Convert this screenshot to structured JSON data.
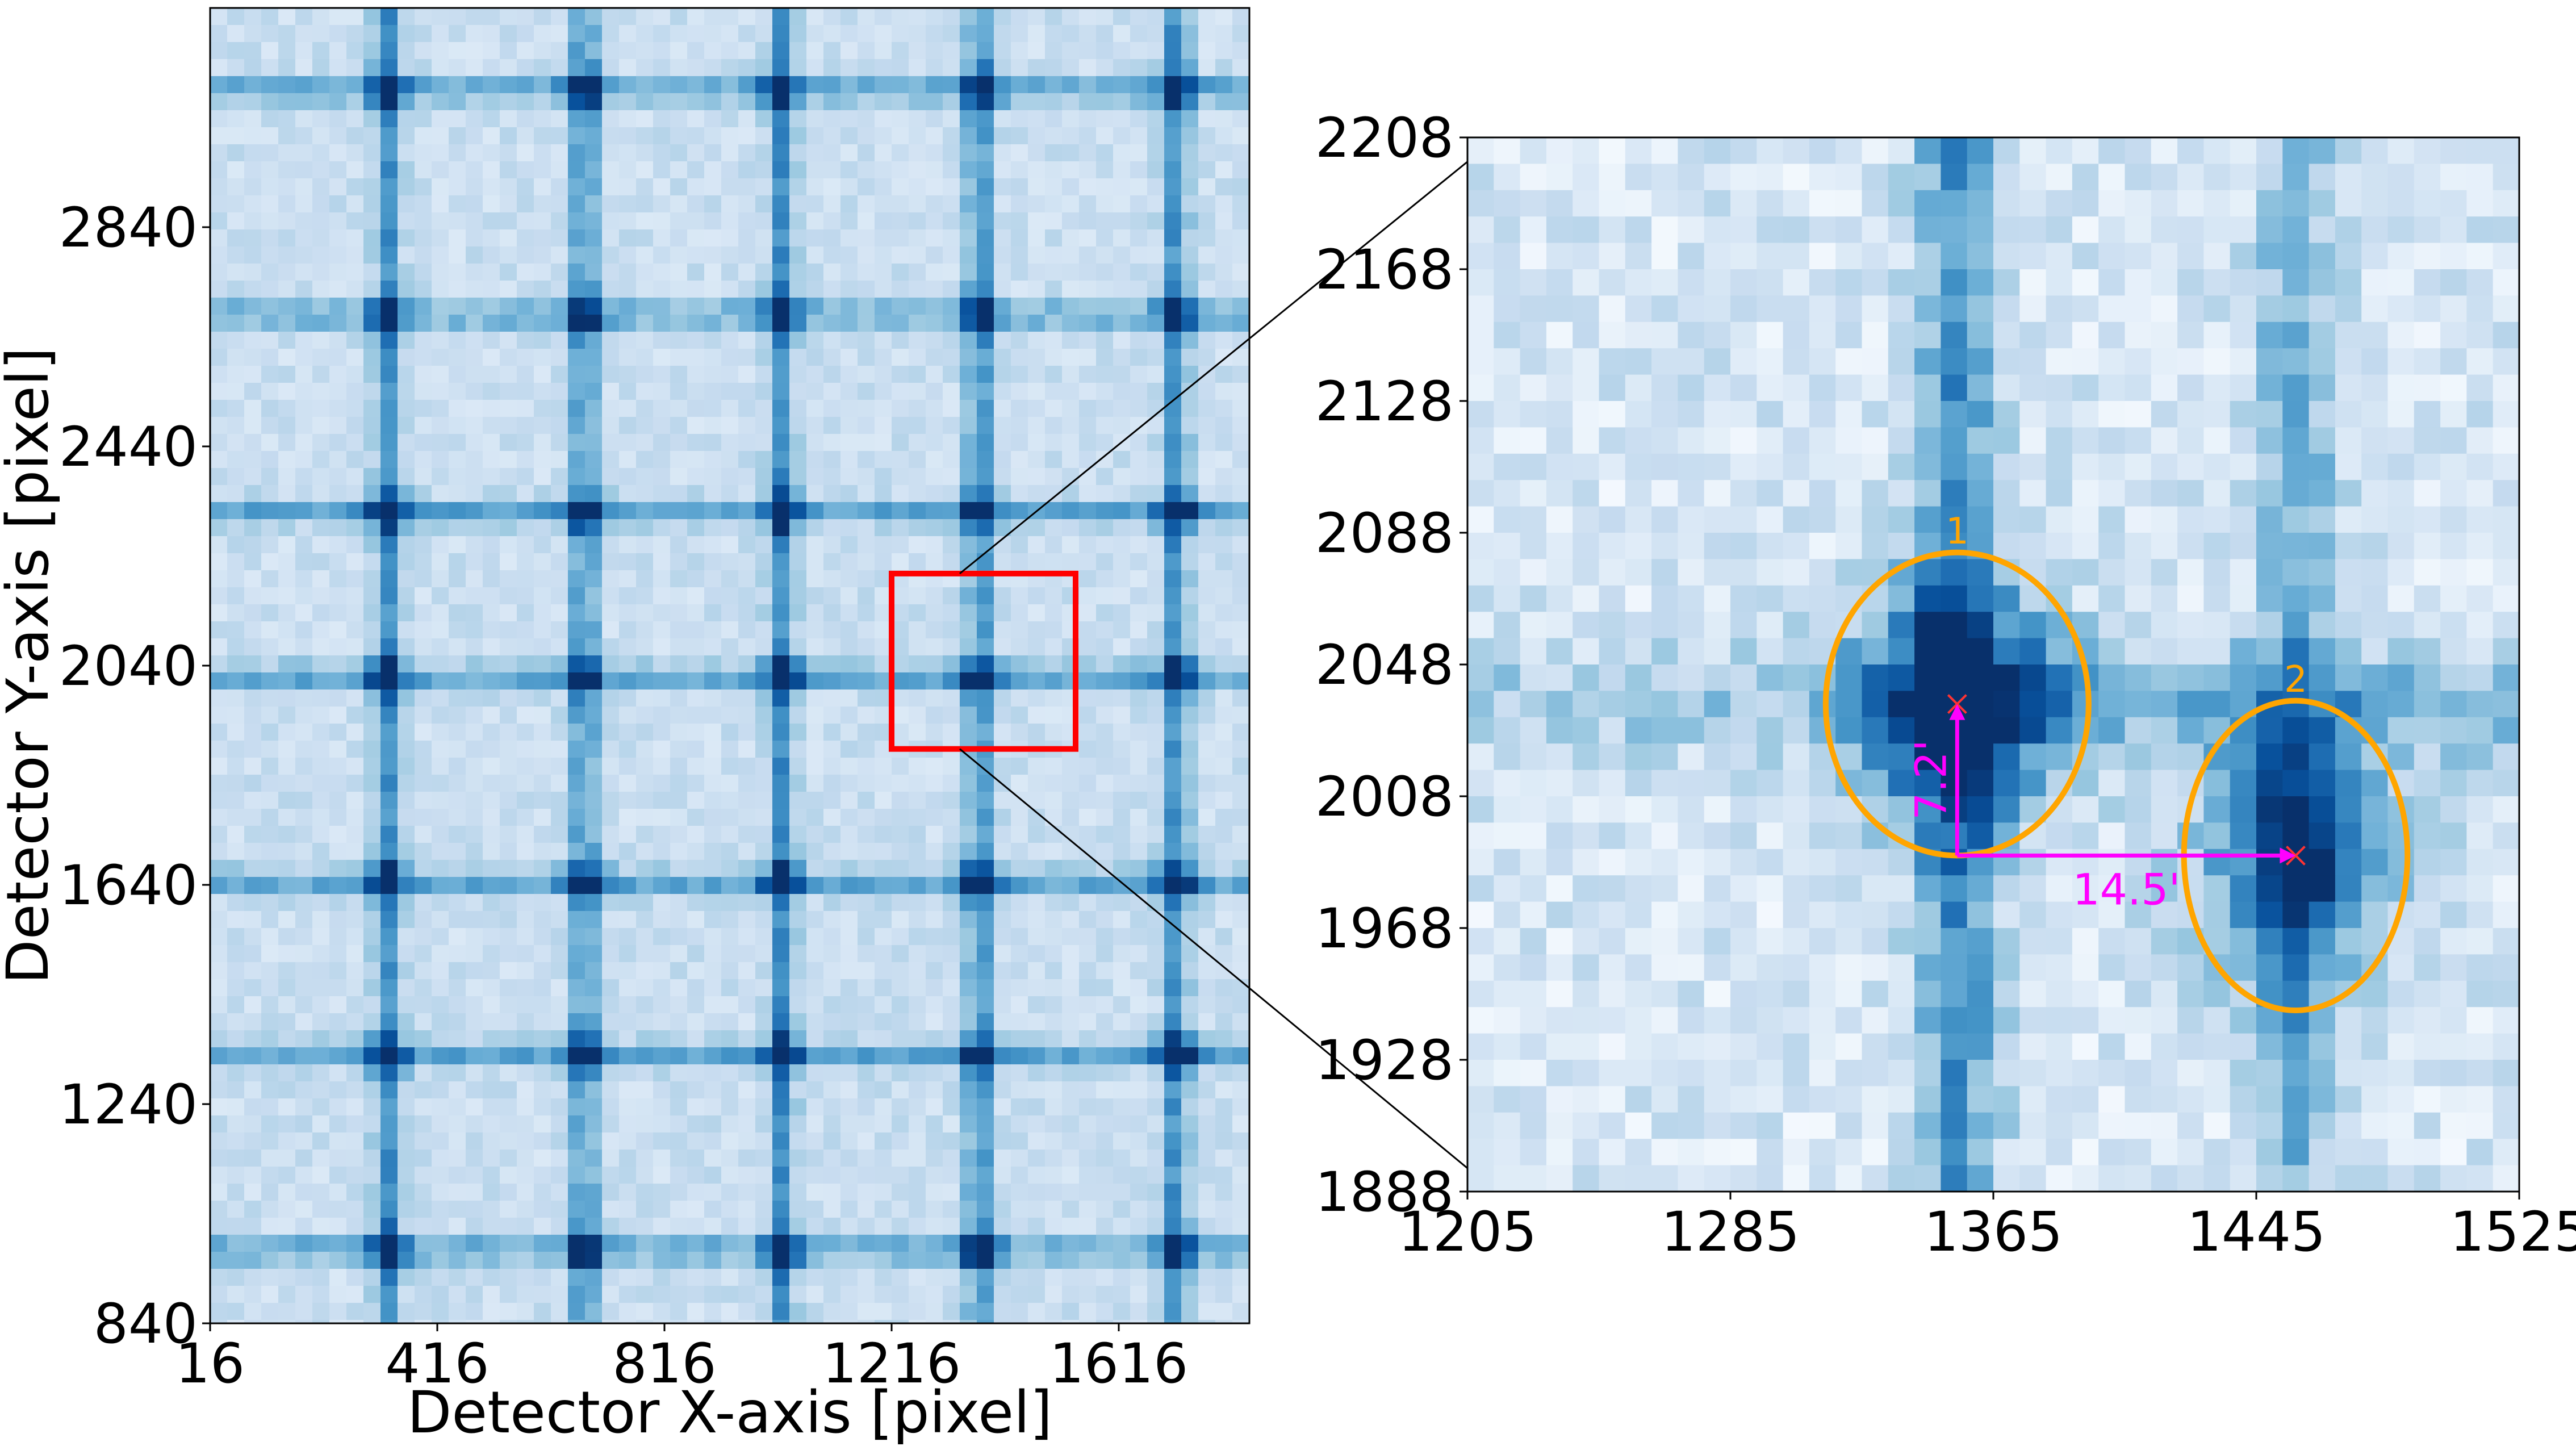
{
  "chart_data": [
    {
      "type": "heatmap",
      "title": "",
      "xlabel": "Detector X-axis [pixel]",
      "ylabel": "Detector Y-axis [pixel]",
      "xlim": [
        16,
        1846
      ],
      "ylim": [
        840,
        3240
      ],
      "x_ticks": [
        "16",
        "416",
        "816",
        "1216",
        "1616"
      ],
      "x_tick_values": [
        16,
        416,
        816,
        1216,
        1616
      ],
      "y_ticks": [
        "840",
        "1240",
        "1640",
        "2040",
        "2440",
        "2840"
      ],
      "y_tick_values": [
        840,
        1240,
        1640,
        2040,
        2440,
        2840
      ],
      "colormap": "Blues",
      "grid": false,
      "vertical_bars_x": [
        328,
        675,
        1023,
        1370,
        1717
      ],
      "horizontal_bars_y": [
        974,
        1330,
        1645,
        2020,
        2320,
        2680,
        3090
      ],
      "highlight_box": {
        "x": [
          1216,
          1540
        ],
        "y": [
          1888,
          2208
        ],
        "color": "#ff0000"
      }
    },
    {
      "type": "heatmap",
      "title": "",
      "xlabel": "",
      "ylabel": "",
      "xlim": [
        1205,
        1525
      ],
      "ylim": [
        1888,
        2208
      ],
      "x_ticks": [
        "1205",
        "1285",
        "1365",
        "1445",
        "1525"
      ],
      "x_tick_values": [
        1205,
        1285,
        1365,
        1445,
        1525
      ],
      "y_ticks": [
        "1888",
        "1928",
        "1968",
        "2008",
        "2048",
        "2088",
        "2128",
        "2168",
        "2208"
      ],
      "y_tick_values": [
        1888,
        1928,
        1968,
        2008,
        2048,
        2088,
        2128,
        2168,
        2208
      ],
      "colormap": "Blues",
      "grid": false,
      "peaks": [
        {
          "label": "1",
          "x": 1354,
          "y": 2036
        },
        {
          "label": "2",
          "x": 1457,
          "y": 1990
        }
      ],
      "ellipse_color": "#ffa500",
      "marker_color": "#ff3333",
      "offset_color": "#ff00ff",
      "offsets": [
        {
          "label": "7.2'",
          "direction": "vertical"
        },
        {
          "label": "14.5'",
          "direction": "horizontal"
        }
      ]
    }
  ]
}
